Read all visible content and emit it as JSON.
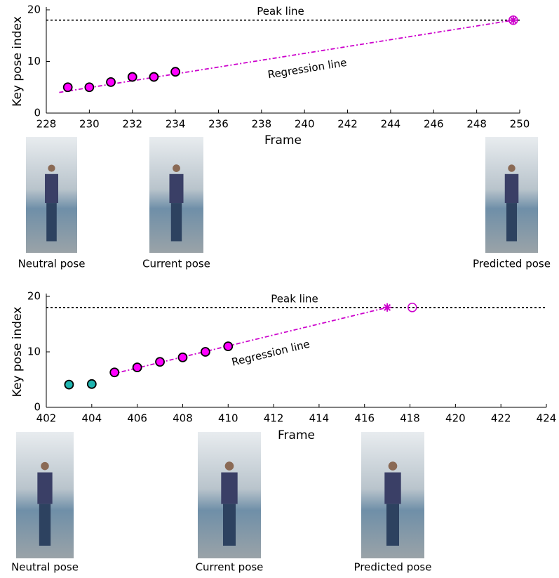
{
  "chart_data": [
    {
      "type": "scatter",
      "xlabel": "Frame",
      "ylabel": "Key pose index",
      "xlim": [
        228,
        250
      ],
      "xticks": [
        228,
        230,
        232,
        234,
        236,
        238,
        240,
        242,
        244,
        246,
        248,
        250
      ],
      "ylim": [
        0,
        20
      ],
      "yticks": [
        0,
        10,
        20
      ],
      "series": [
        {
          "color": "#ff00ff",
          "x": [
            229,
            230,
            231,
            232,
            233,
            234
          ],
          "values": [
            5,
            5,
            6,
            7,
            7,
            8
          ]
        }
      ],
      "regression": {
        "text": "Regression line",
        "color": "#cc00cc",
        "x": [
          228.6,
          249.7
        ],
        "values": [
          4,
          18
        ]
      },
      "peak_line": {
        "text": "Peak line",
        "value": 18
      },
      "markers": [
        {
          "x": 249.7,
          "value": 18,
          "shape": "circled-asterisk",
          "color": "#cc00cc"
        }
      ],
      "photos": [
        "Neutral pose",
        "Current pose",
        "Predicted pose"
      ]
    },
    {
      "type": "scatter",
      "xlabel": "Frame",
      "ylabel": "Key pose index",
      "xlim": [
        402,
        424
      ],
      "xticks": [
        402,
        404,
        406,
        408,
        410,
        412,
        414,
        416,
        418,
        420,
        422,
        424
      ],
      "ylim": [
        0,
        20
      ],
      "yticks": [
        0,
        10,
        20
      ],
      "series": [
        {
          "color": "#1fb5b0",
          "x": [
            403,
            404
          ],
          "values": [
            4.1,
            4.2
          ]
        },
        {
          "color": "#ff00ff",
          "x": [
            405,
            406,
            407,
            408,
            409,
            410
          ],
          "values": [
            6.3,
            7.2,
            8.2,
            9,
            10,
            11
          ]
        }
      ],
      "regression": {
        "text": "Regression line",
        "color": "#cc00cc",
        "x": [
          404.9,
          417
        ],
        "values": [
          6,
          18
        ]
      },
      "peak_line": {
        "text": "Peak line",
        "value": 18
      },
      "markers": [
        {
          "x": 417,
          "value": 18,
          "shape": "asterisk",
          "color": "#cc00cc"
        },
        {
          "x": 418.1,
          "value": 18,
          "shape": "open-circle",
          "color": "#cc00cc"
        }
      ],
      "photos": [
        "Neutral pose",
        "Current pose",
        "Predicted pose"
      ]
    }
  ]
}
